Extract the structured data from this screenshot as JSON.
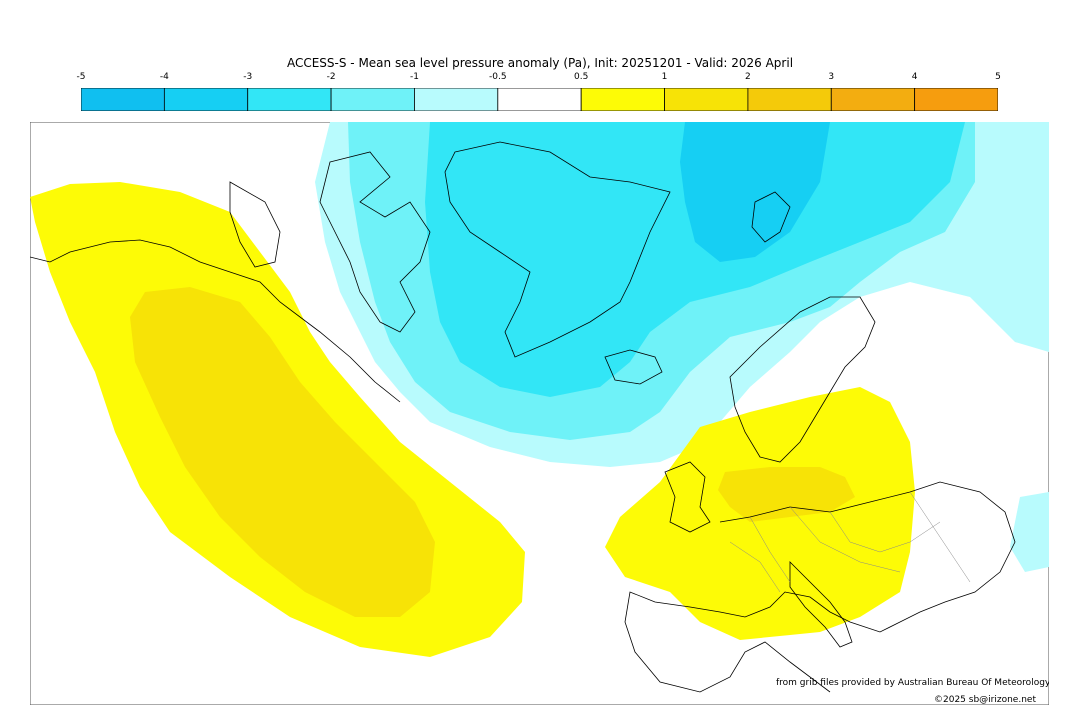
{
  "title": "ACCESS-S - Mean sea level pressure anomaly (Pa), Init: 20251201 - Valid: 2026 April",
  "colorbar": {
    "ticks": [
      "-5",
      "-4",
      "-3",
      "-2",
      "-1",
      "-0.5",
      "0.5",
      "1",
      "2",
      "3",
      "4",
      "5"
    ],
    "colors": [
      "#10bff0",
      "#16cff3",
      "#32e6f6",
      "#6ff2f8",
      "#b8fbfd",
      "#ffffff",
      "#fdfb06",
      "#f7e306",
      "#f4ca0a",
      "#f3ad10",
      "#f69d0e"
    ]
  },
  "credits": {
    "source": "from grib files provided by Australian Bureau Of Meteorology",
    "copyright": "©2025 sb@irizone.net"
  }
}
